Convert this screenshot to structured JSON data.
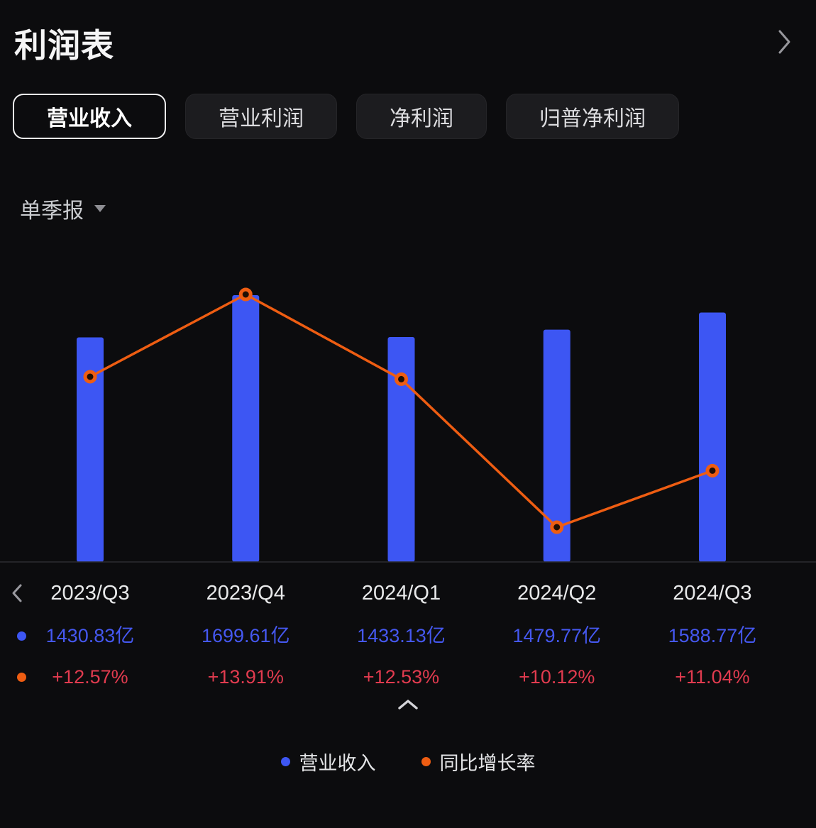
{
  "header": {
    "title": "利润表"
  },
  "tabs": {
    "items": [
      {
        "label": "营业收入",
        "selected": true
      },
      {
        "label": "营业利润",
        "selected": false
      },
      {
        "label": "净利润",
        "selected": false
      },
      {
        "label": "归普净利润",
        "selected": false
      }
    ]
  },
  "period_selector": {
    "value": "单季报"
  },
  "chart_data": {
    "type": "bar",
    "subtype": "bar-with-line-overlay",
    "categories": [
      "2023/Q3",
      "2023/Q4",
      "2024/Q1",
      "2024/Q2",
      "2024/Q3"
    ],
    "series": [
      {
        "name": "营业收入",
        "type": "bar",
        "unit": "亿",
        "color": "#3d56f3",
        "values": [
          1430.83,
          1699.61,
          1433.13,
          1479.77,
          1588.77
        ]
      },
      {
        "name": "同比增长率",
        "type": "line",
        "unit": "%",
        "color": "#ee5d12",
        "values": [
          12.57,
          13.91,
          12.53,
          10.12,
          11.04
        ]
      }
    ],
    "ylim_bar": [
      0,
      1699.61
    ],
    "ylim_line": [
      10.12,
      13.91
    ],
    "grid": false,
    "legend_position": "bottom"
  },
  "details": {
    "value_labels": [
      "1430.83亿",
      "1699.61亿",
      "1433.13亿",
      "1479.77亿",
      "1588.77亿"
    ],
    "growth_labels": [
      "+12.57%",
      "+13.91%",
      "+12.53%",
      "+10.12%",
      "+11.04%"
    ]
  },
  "legend": {
    "items": [
      {
        "label": "营业收入",
        "color": "#3d56f3"
      },
      {
        "label": "同比增长率",
        "color": "#ee5d12"
      }
    ]
  },
  "colors": {
    "background": "#0c0c0e",
    "bar_blue": "#3d56f3",
    "line_orange": "#ee5d12",
    "value_blue": "#4558f0",
    "growth_red": "#e13b4f",
    "baseline": "#2c2c31"
  }
}
